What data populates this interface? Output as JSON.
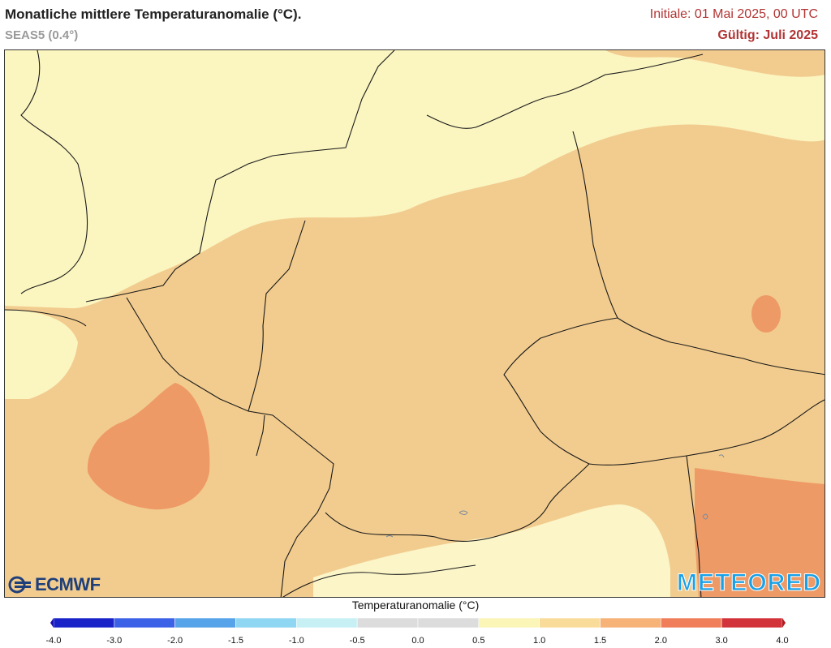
{
  "header": {
    "title": "Monatliche mittlere Temperaturanomalie (°C).",
    "model": "SEAS5 (0.4°)",
    "initial": "Initiale: 01 Mai 2025, 00 UTC",
    "valid": "Gültig: Juli 2025"
  },
  "logos": {
    "left": "ECMWF",
    "right": "METEORED"
  },
  "legend": {
    "title": "Temperaturanomalie (°C)",
    "ticks": [
      "-4.0",
      "-3.0",
      "-2.0",
      "-1.5",
      "-1.0",
      "-0.5",
      "0.0",
      "0.5",
      "1.0",
      "1.5",
      "2.0",
      "3.0",
      "4.0"
    ],
    "colors": [
      "#1a23c8",
      "#3b62e6",
      "#56a3ea",
      "#8fd6f2",
      "#c7f0f4",
      "#dcdcdc",
      "#dcdcdc",
      "#fbf5b8",
      "#f9dc9a",
      "#f6b277",
      "#f07e5a",
      "#d2323a"
    ],
    "end_colors": {
      "low": "#1a0fb0",
      "high": "#b11a20"
    }
  },
  "map": {
    "fill_levels": {
      "0.5_to_1.0": "#fbf5c0",
      "1.0_to_1.5": "#f2cc8e",
      "1.5_to_2.0": "#ee9a66"
    }
  }
}
